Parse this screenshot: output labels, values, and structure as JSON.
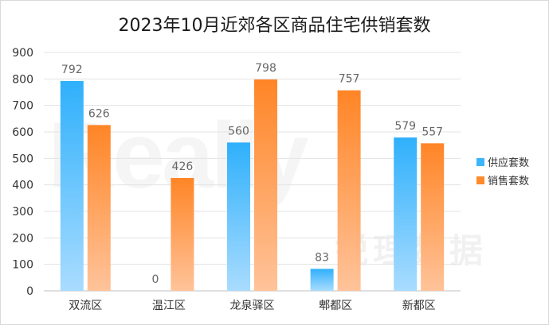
{
  "chart_data": {
    "type": "bar",
    "title": "2023年10月近郊各区商品住宅供销套数",
    "categories": [
      "双流区",
      "温江区",
      "龙泉驿区",
      "郫都区",
      "新都区"
    ],
    "series": [
      {
        "name": "供应套数",
        "values": [
          792,
          0,
          560,
          83,
          579
        ],
        "color": "#3bb5fb"
      },
      {
        "name": "销售套数",
        "values": [
          626,
          426,
          798,
          757,
          557
        ],
        "color": "#ff8a2b"
      }
    ],
    "ylim": [
      0,
      900
    ],
    "yticks": [
      0,
      100,
      200,
      300,
      400,
      500,
      600,
      700,
      800,
      900
    ],
    "grid": true,
    "legend": "right",
    "data_labels": true
  },
  "watermark": {
    "latin": "Really",
    "cn": "锐理数据"
  }
}
